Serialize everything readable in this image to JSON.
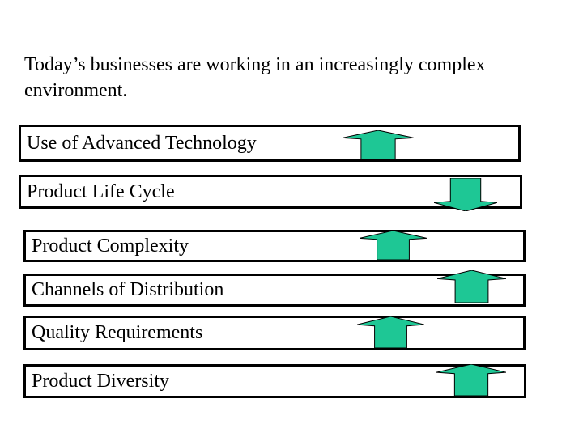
{
  "slide": {
    "title": "Today’s businesses are working in an increasingly complex environment.",
    "rows": [
      {
        "label": "Use of Advanced Technology",
        "trend": "up"
      },
      {
        "label": "Product Life Cycle",
        "trend": "down"
      },
      {
        "label": "Product Complexity",
        "trend": "up"
      },
      {
        "label": "Channels of Distribution",
        "trend": "up"
      },
      {
        "label": "Quality Requirements",
        "trend": "up"
      },
      {
        "label": "Product Diversity",
        "trend": "up"
      }
    ],
    "colors": {
      "arrow_fill": "#1EC795",
      "arrow_outline": "#000000",
      "box_border": "#000000",
      "background": "#FFFFFF",
      "text": "#000000"
    }
  }
}
